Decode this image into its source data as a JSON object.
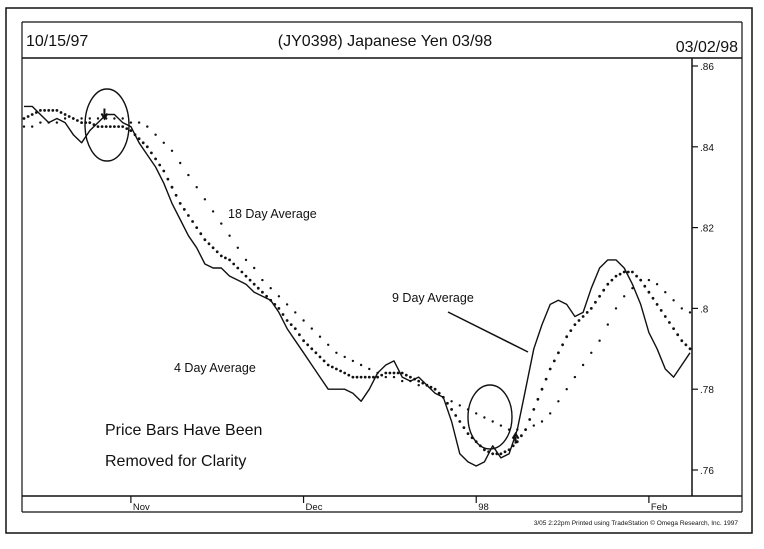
{
  "header": {
    "start_date": "10/15/97",
    "title": "(JY0398) Japanese Yen 03/98",
    "end_date": "03/02/98"
  },
  "footer_credit": "3/05  2:22pm Printed using TradeStation © Omega Research, Inc. 1997",
  "chart_data": {
    "type": "line",
    "title": "(JY0398) Japanese Yen 03/98",
    "ylim": [
      0.755,
      0.862
    ],
    "yticks": [
      0.76,
      0.78,
      0.8,
      0.82,
      0.84,
      0.86
    ],
    "ytick_labels": [
      ".76",
      ".78",
      ".8",
      ".82",
      ".84",
      ".86"
    ],
    "x_tick_labels": [
      "Nov",
      "Dec",
      "98",
      "Feb"
    ],
    "x_tick_index": [
      13,
      34,
      55,
      76
    ],
    "grid": false,
    "series": [
      {
        "name": "4 Day Average",
        "style": "solid",
        "values": [
          0.85,
          0.85,
          0.848,
          0.846,
          0.847,
          0.846,
          0.843,
          0.841,
          0.844,
          0.846,
          0.848,
          0.848,
          0.846,
          0.845,
          0.841,
          0.838,
          0.835,
          0.831,
          0.826,
          0.822,
          0.818,
          0.815,
          0.811,
          0.81,
          0.81,
          0.808,
          0.807,
          0.806,
          0.804,
          0.803,
          0.802,
          0.799,
          0.795,
          0.792,
          0.789,
          0.786,
          0.783,
          0.78,
          0.78,
          0.78,
          0.779,
          0.777,
          0.78,
          0.784,
          0.786,
          0.787,
          0.783,
          0.782,
          0.783,
          0.781,
          0.779,
          0.778,
          0.772,
          0.764,
          0.762,
          0.761,
          0.762,
          0.766,
          0.763,
          0.764,
          0.77,
          0.78,
          0.79,
          0.796,
          0.801,
          0.802,
          0.801,
          0.798,
          0.799,
          0.805,
          0.81,
          0.812,
          0.812,
          0.81,
          0.806,
          0.801,
          0.794,
          0.79,
          0.785,
          0.783,
          0.786,
          0.789
        ]
      },
      {
        "name": "9 Day Average",
        "style": "dense-dots",
        "values": [
          0.847,
          0.848,
          0.849,
          0.849,
          0.849,
          0.848,
          0.847,
          0.846,
          0.846,
          0.845,
          0.845,
          0.845,
          0.845,
          0.844,
          0.842,
          0.84,
          0.837,
          0.834,
          0.83,
          0.826,
          0.823,
          0.82,
          0.817,
          0.815,
          0.813,
          0.812,
          0.81,
          0.808,
          0.806,
          0.804,
          0.802,
          0.8,
          0.797,
          0.795,
          0.792,
          0.79,
          0.788,
          0.786,
          0.785,
          0.784,
          0.783,
          0.783,
          0.783,
          0.783,
          0.784,
          0.784,
          0.784,
          0.783,
          0.782,
          0.781,
          0.78,
          0.778,
          0.775,
          0.772,
          0.769,
          0.767,
          0.765,
          0.764,
          0.764,
          0.765,
          0.767,
          0.77,
          0.775,
          0.78,
          0.785,
          0.789,
          0.793,
          0.796,
          0.798,
          0.8,
          0.803,
          0.806,
          0.808,
          0.809,
          0.809,
          0.807,
          0.804,
          0.801,
          0.798,
          0.795,
          0.792,
          0.79
        ]
      },
      {
        "name": "18 Day Average",
        "style": "sparse-dots",
        "values": [
          0.845,
          0.845,
          0.846,
          0.846,
          0.846,
          0.847,
          0.847,
          0.847,
          0.847,
          0.847,
          0.847,
          0.847,
          0.847,
          0.846,
          0.846,
          0.845,
          0.843,
          0.841,
          0.839,
          0.836,
          0.833,
          0.83,
          0.827,
          0.824,
          0.821,
          0.818,
          0.815,
          0.812,
          0.81,
          0.807,
          0.805,
          0.803,
          0.801,
          0.799,
          0.797,
          0.795,
          0.793,
          0.791,
          0.789,
          0.788,
          0.787,
          0.786,
          0.785,
          0.784,
          0.783,
          0.783,
          0.782,
          0.782,
          0.781,
          0.781,
          0.78,
          0.778,
          0.777,
          0.776,
          0.775,
          0.774,
          0.773,
          0.772,
          0.771,
          0.77,
          0.77,
          0.77,
          0.771,
          0.772,
          0.774,
          0.777,
          0.78,
          0.783,
          0.786,
          0.789,
          0.792,
          0.796,
          0.8,
          0.803,
          0.805,
          0.807,
          0.807,
          0.806,
          0.804,
          0.802,
          0.8,
          0.799
        ]
      }
    ],
    "annotations": [
      {
        "text": "18 Day Average"
      },
      {
        "text": "9 Day Average"
      },
      {
        "text": "4 Day Average"
      },
      {
        "text": "Price Bars Have Been"
      },
      {
        "text": "Removed for Clarity"
      }
    ],
    "markers": [
      {
        "kind": "sell-arrow",
        "index": 11,
        "value": 0.847
      },
      {
        "kind": "buy-arrow",
        "index": 61,
        "value": 0.769
      }
    ]
  }
}
